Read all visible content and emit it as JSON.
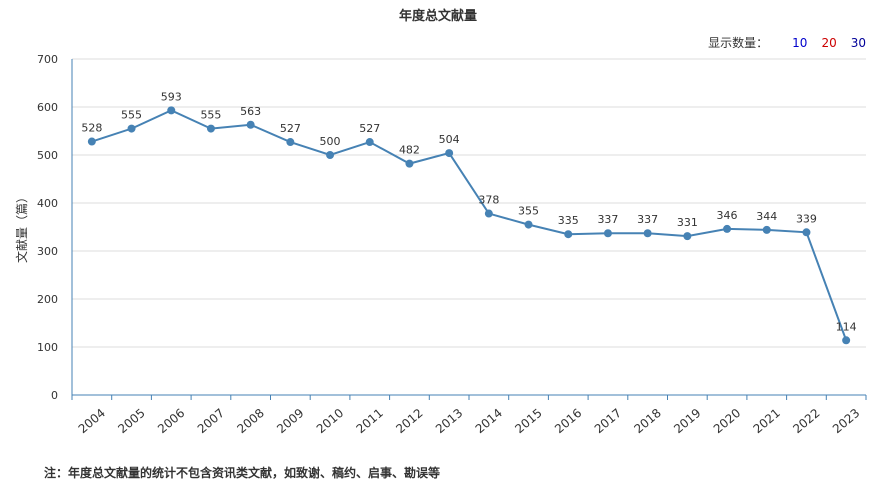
{
  "header": {
    "title": "年度总文献量",
    "display_count_label": "显示数量：",
    "display_count_options": [
      {
        "label": "10",
        "color": "#0000cc"
      },
      {
        "label": "20",
        "color": "#cc0000"
      },
      {
        "label": "30",
        "color": "#000099"
      }
    ]
  },
  "footer": {
    "note": "注：年度总文献量的统计不包含资讯类文献，如致谢、稿约、启事、勘误等"
  },
  "chart_data": {
    "type": "line",
    "title": "年度总文献量",
    "xlabel": "",
    "ylabel": "文献量（篇）",
    "categories": [
      "2004",
      "2005",
      "2006",
      "2007",
      "2008",
      "2009",
      "2010",
      "2011",
      "2012",
      "2013",
      "2014",
      "2015",
      "2016",
      "2017",
      "2018",
      "2019",
      "2020",
      "2021",
      "2022",
      "2023"
    ],
    "series": [
      {
        "values": [
          528,
          555,
          593,
          555,
          563,
          527,
          500,
          527,
          482,
          504,
          378,
          355,
          335,
          337,
          337,
          331,
          346,
          344,
          339,
          114
        ]
      }
    ],
    "ylim": [
      0,
      700
    ],
    "yticks": [
      0,
      100,
      200,
      300,
      400,
      500,
      600,
      700
    ],
    "grid": true,
    "line_color": "#4682b4"
  }
}
